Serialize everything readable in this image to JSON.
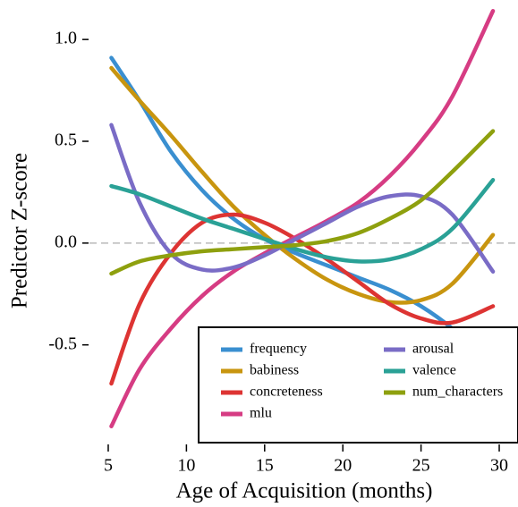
{
  "chart_data": {
    "type": "line",
    "xlabel": "Age of Acquisition (months)",
    "ylabel": "Predictor Z-score",
    "x": [
      5.2,
      7,
      9,
      11,
      13,
      15,
      17,
      19,
      21,
      23,
      25,
      27,
      29.6
    ],
    "series": [
      {
        "name": "frequency",
        "color": "#3a8fd0",
        "values": [
          0.91,
          0.7,
          0.45,
          0.26,
          0.12,
          0.02,
          -0.05,
          -0.11,
          -0.17,
          -0.23,
          -0.31,
          -0.42,
          -0.6
        ]
      },
      {
        "name": "babiness",
        "color": "#c8950f",
        "values": [
          0.86,
          0.7,
          0.53,
          0.35,
          0.18,
          0.04,
          -0.08,
          -0.18,
          -0.25,
          -0.29,
          -0.28,
          -0.2,
          0.04
        ]
      },
      {
        "name": "concreteness",
        "color": "#dd3433",
        "values": [
          -0.69,
          -0.3,
          -0.05,
          0.1,
          0.14,
          0.1,
          0.02,
          -0.08,
          -0.19,
          -0.3,
          -0.37,
          -0.39,
          -0.31
        ]
      },
      {
        "name": "mlu",
        "color": "#d63c83",
        "values": [
          -0.9,
          -0.62,
          -0.42,
          -0.26,
          -0.14,
          -0.05,
          0.03,
          0.11,
          0.2,
          0.33,
          0.5,
          0.72,
          1.14
        ]
      },
      {
        "name": "arousal",
        "color": "#7a6cc6",
        "values": [
          0.58,
          0.2,
          -0.05,
          -0.13,
          -0.12,
          -0.06,
          0.02,
          0.1,
          0.18,
          0.23,
          0.23,
          0.14,
          -0.14
        ]
      },
      {
        "name": "valence",
        "color": "#2aa196",
        "values": [
          0.28,
          0.24,
          0.18,
          0.12,
          0.07,
          0.02,
          -0.03,
          -0.07,
          -0.09,
          -0.08,
          -0.03,
          0.07,
          0.31
        ]
      },
      {
        "name": "num_characters",
        "color": "#8ea00e",
        "values": [
          -0.15,
          -0.09,
          -0.06,
          -0.04,
          -0.03,
          -0.02,
          -0.01,
          0.01,
          0.05,
          0.12,
          0.21,
          0.35,
          0.55
        ]
      }
    ],
    "xlim": [
      3.8,
      31.2
    ],
    "ylim": [
      -0.98,
      1.15
    ],
    "xticks": [
      5,
      10,
      15,
      20,
      25,
      30
    ],
    "yticks": [
      -0.5,
      {
        "value": 0,
        "label": "0.0"
      },
      {
        "value": 0.5,
        "label": "0.5"
      },
      {
        "value": 1,
        "label": "1.0"
      }
    ],
    "hline": 0,
    "legend": "bottom-right"
  }
}
